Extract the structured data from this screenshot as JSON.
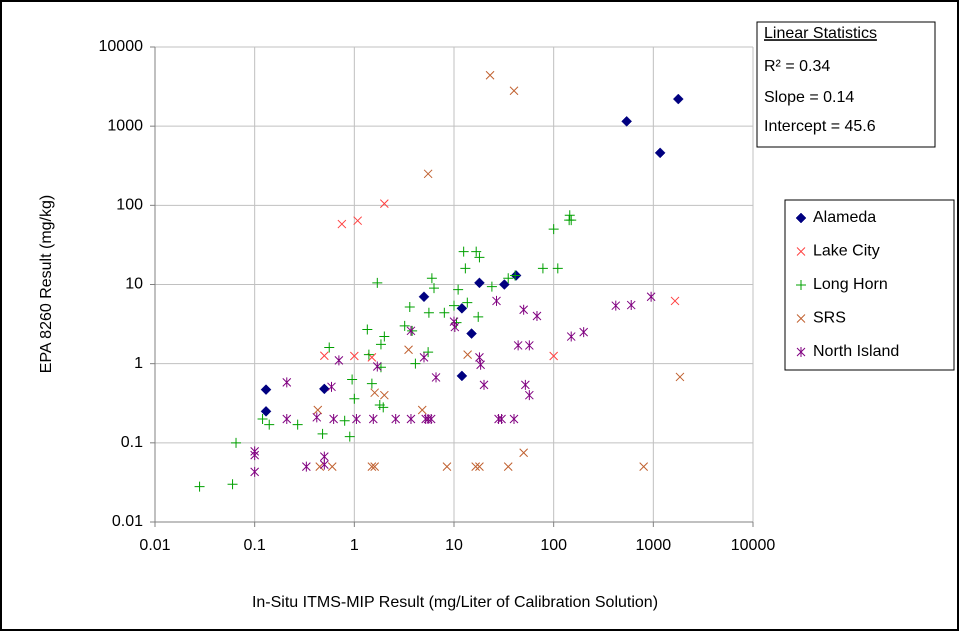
{
  "chart_data": {
    "type": "scatter",
    "xlabel": "In-Situ ITMS-MIP Result (mg/Liter of Calibration Solution)",
    "ylabel": "EPA 8260 Result (mg/kg)",
    "xscale": "log",
    "yscale": "log",
    "xlim": [
      0.01,
      10000
    ],
    "ylim": [
      0.01,
      10000
    ],
    "xticks": [
      0.01,
      0.1,
      1,
      10,
      100,
      1000,
      10000
    ],
    "yticks": [
      0.01,
      0.1,
      1,
      10,
      100,
      1000,
      10000
    ],
    "grid": true,
    "legend": "right",
    "stats_box": {
      "title": "Linear Statistics",
      "lines": [
        "R² = 0.34",
        "Slope = 0.14",
        "Intercept = 45.6"
      ]
    },
    "series": [
      {
        "name": "Alameda",
        "color": "#000080",
        "marker": "diamond",
        "x": [
          0.13,
          0.13,
          0.5,
          5,
          12,
          15,
          12,
          18,
          32,
          42,
          540,
          1170,
          1780
        ],
        "values": [
          0.47,
          0.25,
          0.48,
          7,
          5,
          2.4,
          0.7,
          10.5,
          10,
          13,
          1150,
          460,
          2200
        ]
      },
      {
        "name": "Lake City",
        "color": "#ff4040",
        "marker": "x",
        "x": [
          0.75,
          1.08,
          2,
          0.5,
          1,
          1.5,
          100,
          1650
        ],
        "values": [
          58,
          64,
          105,
          1.26,
          1.25,
          1.2,
          1.25,
          6.2
        ]
      },
      {
        "name": "Long Horn",
        "color": "#00a000",
        "marker": "plus",
        "x": [
          0.028,
          0.06,
          0.065,
          0.12,
          0.14,
          0.27,
          0.48,
          0.56,
          0.9,
          0.8,
          1,
          0.95,
          1.35,
          1.4,
          1.5,
          1.7,
          1.8,
          1.95,
          1.85,
          2,
          1.85,
          3.2,
          3.6,
          3.8,
          4.1,
          5.5,
          5.6,
          6,
          6.3,
          8,
          10,
          10.6,
          11,
          12.5,
          13,
          13.6,
          16.7,
          18,
          17.5,
          24,
          35,
          41,
          78,
          110,
          100,
          143,
          145,
          150
        ],
        "values": [
          0.028,
          0.03,
          0.1,
          0.2,
          0.17,
          0.17,
          0.13,
          1.6,
          0.12,
          0.19,
          0.36,
          0.63,
          2.7,
          1.3,
          0.56,
          10.5,
          0.3,
          0.28,
          0.9,
          2.2,
          1.75,
          3,
          5.2,
          2.6,
          1,
          1.4,
          4.4,
          12,
          9,
          4.4,
          5.4,
          3.3,
          8.6,
          26,
          16,
          5.9,
          26,
          22,
          3.9,
          9.4,
          12,
          13,
          16,
          16,
          50,
          65,
          75,
          65
        ]
      },
      {
        "name": "SRS",
        "color": "#c0602f",
        "marker": "x",
        "x": [
          23,
          40,
          5.5,
          0.45,
          0.6,
          1.5,
          1.6,
          8.5,
          16.5,
          18,
          35,
          800,
          0.43,
          1.6,
          2,
          3.5,
          4.8,
          13.7,
          50,
          1850
        ],
        "values": [
          4400,
          2800,
          250,
          0.05,
          0.05,
          0.05,
          0.05,
          0.05,
          0.05,
          0.05,
          0.05,
          0.05,
          0.26,
          0.43,
          0.4,
          1.5,
          0.26,
          1.3,
          0.075,
          0.68
        ]
      },
      {
        "name": "North Island",
        "color": "#800080",
        "marker": "star",
        "x": [
          0.21,
          0.21,
          0.33,
          0.42,
          0.5,
          0.5,
          0.62,
          0.7,
          0.59,
          0.1,
          0.1,
          0.1,
          1.05,
          1.55,
          1.7,
          2.6,
          3.7,
          3.7,
          5,
          5.2,
          5.5,
          5.9,
          6.6,
          10,
          10.2,
          18,
          18.5,
          20,
          26.7,
          28,
          30,
          40,
          44,
          50,
          52,
          57,
          57,
          68,
          150,
          200,
          420,
          600,
          950
        ],
        "values": [
          0.58,
          0.2,
          0.05,
          0.21,
          0.067,
          0.053,
          0.2,
          1.1,
          0.51,
          0.078,
          0.07,
          0.043,
          0.2,
          0.2,
          0.92,
          0.2,
          0.2,
          2.6,
          1.2,
          0.2,
          0.2,
          0.2,
          0.67,
          3.4,
          2.9,
          1.2,
          0.97,
          0.54,
          6.2,
          0.2,
          0.2,
          0.2,
          1.7,
          4.8,
          0.54,
          0.4,
          1.7,
          4,
          2.2,
          2.5,
          5.4,
          5.5,
          7
        ]
      }
    ]
  }
}
